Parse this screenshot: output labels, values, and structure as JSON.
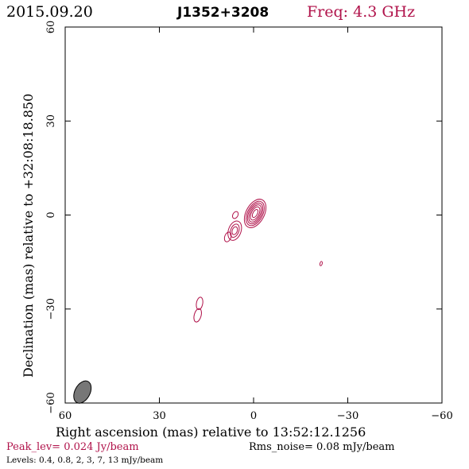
{
  "header": {
    "date": "2015.09.20",
    "source": "J1352+3208",
    "freq": "Freq: 4.3 GHz"
  },
  "footer": {
    "peak": "Peak_lev=  0.024 Jy/beam",
    "rms": "Rms_noise= 0.08 mJy/beam",
    "levels": "Levels: 0.4, 0.8,    2,    3,    7,   13 mJy/beam"
  },
  "colors": {
    "contour": "#b0124a",
    "axes": "#000000",
    "beam_fill": "#777777"
  },
  "chart_data": {
    "type": "contour",
    "xlabel": "Right ascension (mas) relative to 13:52:12.1256",
    "ylabel": "Declination (mas) relative to +32:08:18.850",
    "xlim": [
      60,
      -60
    ],
    "ylim": [
      -60,
      60
    ],
    "xticks": [
      60,
      30,
      0,
      -30,
      -60
    ],
    "yticks": [
      60,
      30,
      0,
      -30,
      -60
    ],
    "xtick_labels": [
      "60",
      "30",
      "0",
      "−30",
      "−60"
    ],
    "ytick_labels": [
      "60",
      "30",
      "0",
      "−30",
      "−60"
    ],
    "contour_levels_mJy": [
      0.4,
      0.8,
      2,
      3,
      7,
      13
    ],
    "components": [
      {
        "x": -0.5,
        "y": 0.5,
        "a": [
          1.4,
          2.3,
          3.0,
          3.6,
          4.2,
          4.9
        ],
        "b": [
          0.7,
          1.2,
          1.6,
          2.0,
          2.4,
          2.9
        ],
        "pa": 28
      },
      {
        "x": 6.0,
        "y": -5.0,
        "a": [
          1.3,
          2.2,
          3.2
        ],
        "b": [
          0.8,
          1.3,
          2.0
        ],
        "pa": 20
      },
      {
        "x": 5.8,
        "y": 0.0,
        "a": [
          1.2
        ],
        "b": [
          0.8
        ],
        "pa": 30
      },
      {
        "x": 8.2,
        "y": -7.0,
        "a": [
          1.6
        ],
        "b": [
          1.0
        ],
        "pa": 20
      },
      {
        "x": 17.2,
        "y": -28.2,
        "a": [
          2.0
        ],
        "b": [
          1.0
        ],
        "pa": 10
      },
      {
        "x": 17.8,
        "y": -32.0,
        "a": [
          2.2
        ],
        "b": [
          1.1
        ],
        "pa": 15
      },
      {
        "x": -21.5,
        "y": -15.5,
        "a": [
          0.7
        ],
        "b": [
          0.35
        ],
        "pa": 15
      }
    ],
    "beam": {
      "x": 54.5,
      "y": -56.5,
      "bmaj": 3.8,
      "bmin": 2.4,
      "pa": 28
    }
  }
}
